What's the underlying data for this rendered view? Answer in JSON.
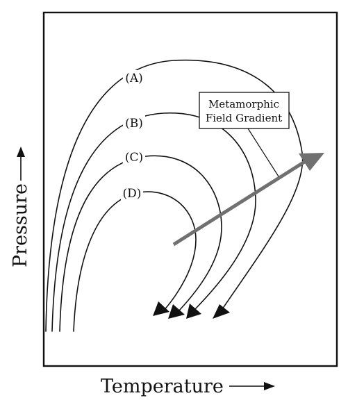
{
  "diagram": {
    "curves": [
      {
        "label": "(A)"
      },
      {
        "label": "(B)"
      },
      {
        "label": "(C)"
      },
      {
        "label": "(D)"
      }
    ],
    "callout_line1": "Metamorphic",
    "callout_line2": "Field Gradient",
    "axis_y": "Pressure",
    "axis_x": "Temperature",
    "colors": {
      "ink": "#111111",
      "gradient_arrow": "#707070",
      "background": "#ffffff"
    }
  }
}
